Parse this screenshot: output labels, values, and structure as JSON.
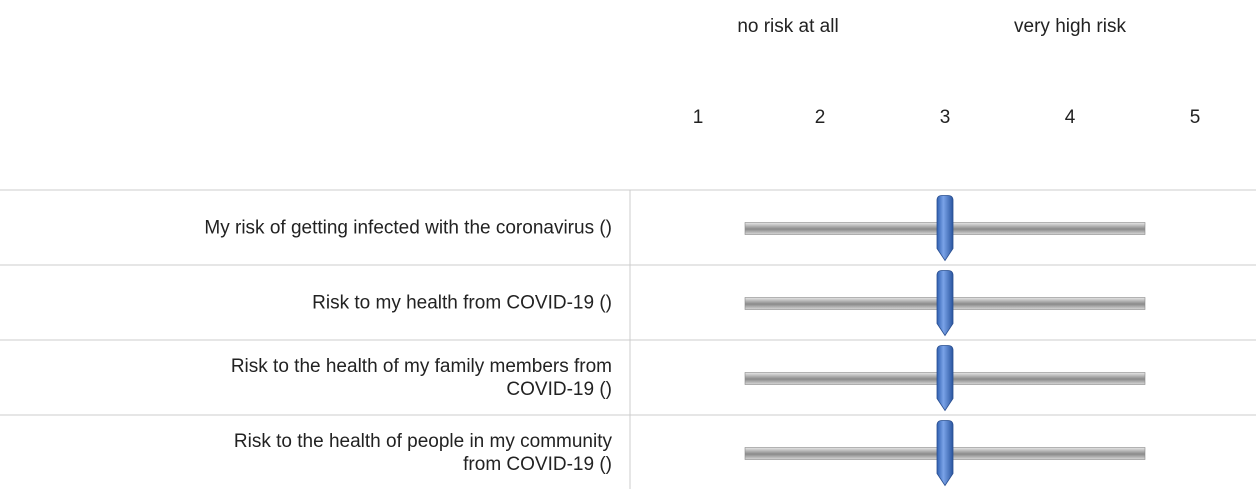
{
  "header": {
    "left_anchor": "no risk at all",
    "right_anchor": "very high risk"
  },
  "scale": [
    1,
    2,
    3,
    4,
    5
  ],
  "rows": [
    {
      "label": [
        "My risk of getting infected with the coronavirus ()"
      ],
      "value": 3
    },
    {
      "label": [
        "Risk to my health from COVID-19 ()"
      ],
      "value": 3
    },
    {
      "label": [
        "Risk to the health of my family members from",
        "COVID-19 ()"
      ],
      "value": 3
    },
    {
      "label": [
        "Risk to the health of people in my community",
        "from COVID-19 ()"
      ],
      "value": 3
    }
  ]
}
